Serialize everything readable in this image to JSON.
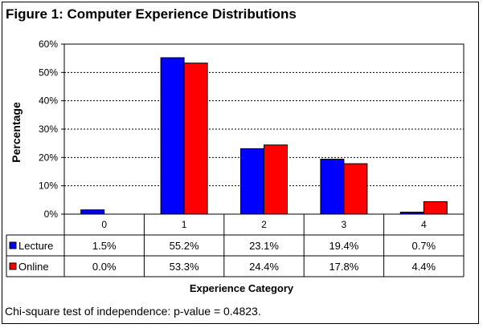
{
  "title": "Figure 1: Computer Experience Distributions",
  "footnote": "Chi-square test of independence:  p-value = 0.4823.",
  "colors": {
    "lecture": "#0000ff",
    "online": "#ff0000"
  },
  "chart_data": {
    "type": "bar",
    "xlabel": "Experience Category",
    "ylabel": "Percentage",
    "ylim": [
      0,
      60
    ],
    "yticks": [
      "0%",
      "10%",
      "20%",
      "30%",
      "40%",
      "50%",
      "60%"
    ],
    "categories": [
      "0",
      "1",
      "2",
      "3",
      "4"
    ],
    "series": [
      {
        "name": "Lecture",
        "values": [
          1.5,
          55.2,
          23.1,
          19.4,
          0.7
        ],
        "labels": [
          "1.5%",
          "55.2%",
          "23.1%",
          "19.4%",
          "0.7%"
        ]
      },
      {
        "name": "Online",
        "values": [
          0.0,
          53.3,
          24.4,
          17.8,
          4.4
        ],
        "labels": [
          "0.0%",
          "53.3%",
          "24.4%",
          "17.8%",
          "4.4%"
        ]
      }
    ],
    "grid": "horizontal dashed",
    "legend": "data table"
  }
}
